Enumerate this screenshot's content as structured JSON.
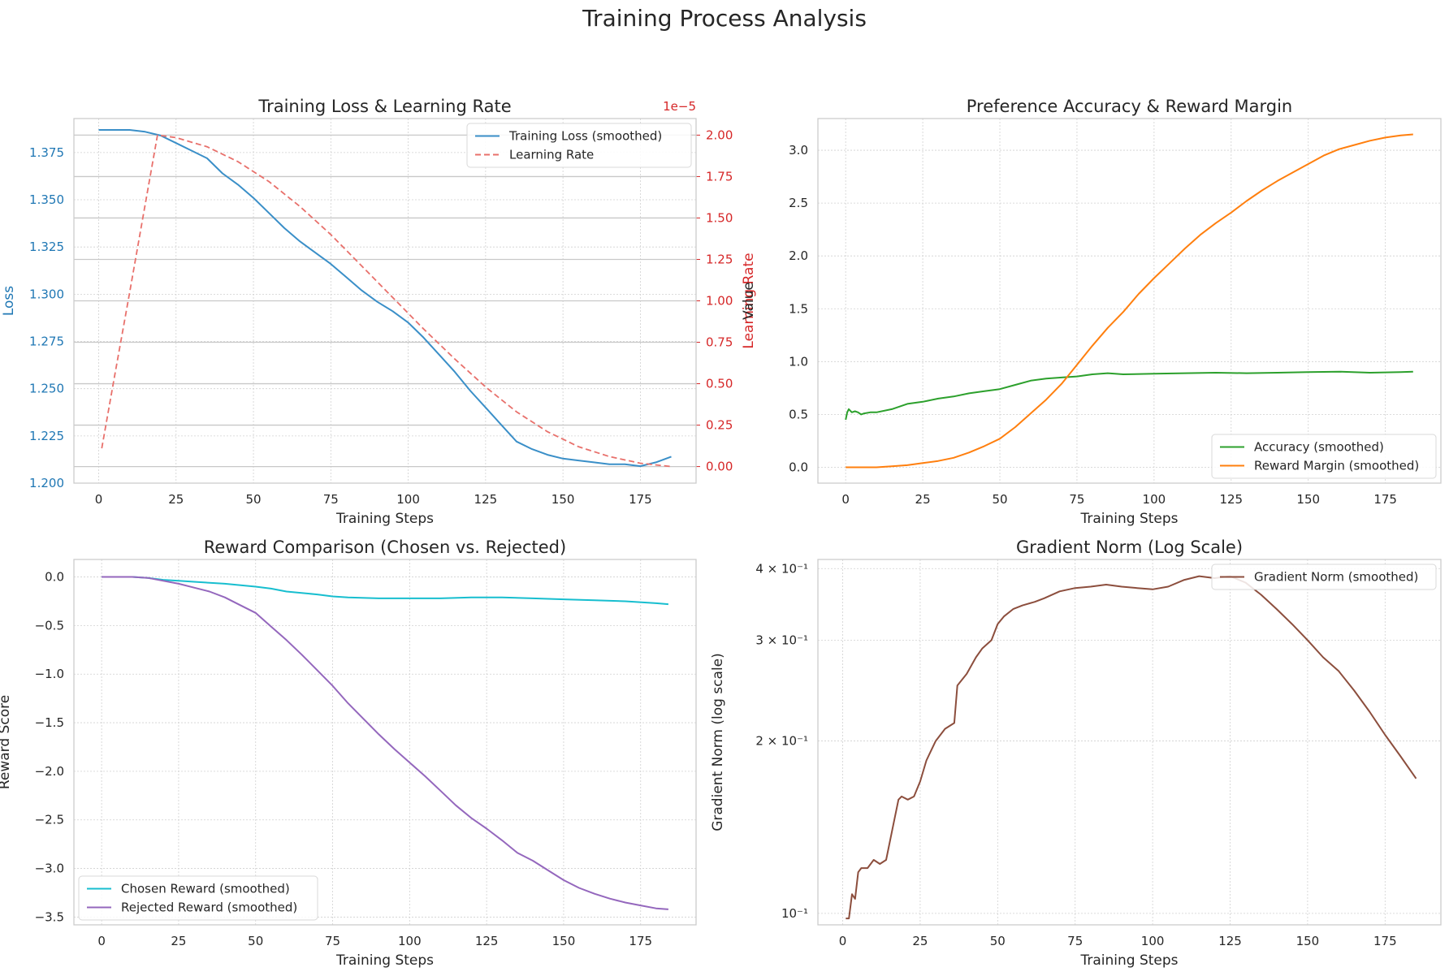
{
  "figure": {
    "title": "Training Process Analysis"
  },
  "colors": {
    "loss": "#3a8fc8",
    "lr": "#e8706b",
    "lr_axis": "#d62728",
    "loss_axis": "#1f77b4",
    "accuracy": "#2ca02c",
    "margin": "#ff7f0e",
    "chosen": "#17becf",
    "rejected": "#9467bd",
    "grad": "#8c4e3d",
    "grid": "#d0d0d0",
    "spine": "#cccccc",
    "text": "#262626"
  },
  "chart_data": [
    {
      "id": "loss",
      "type": "line",
      "title": "Training Loss & Learning Rate",
      "xlabel": "Training Steps",
      "ylabel": "Loss",
      "y2label": "Learning Rate",
      "y2_offset_label": "1e−5",
      "xlim": [
        -8,
        193
      ],
      "ylim": [
        1.2,
        1.393
      ],
      "y2lim": [
        -0.1,
        2.1
      ],
      "xticks": [
        0,
        25,
        50,
        75,
        100,
        125,
        150,
        175
      ],
      "yticks": [
        1.2,
        1.225,
        1.25,
        1.275,
        1.3,
        1.325,
        1.35,
        1.375
      ],
      "ytick_labels": [
        "1.200",
        "1.225",
        "1.250",
        "1.275",
        "1.300",
        "1.325",
        "1.350",
        "1.375"
      ],
      "y2ticks": [
        0,
        0.25,
        0.5,
        0.75,
        1.0,
        1.25,
        1.5,
        1.75,
        2.0
      ],
      "y2tick_labels": [
        "0.00",
        "0.25",
        "0.50",
        "0.75",
        "1.00",
        "1.25",
        "1.50",
        "1.75",
        "2.00"
      ],
      "legend_position": "upper right",
      "series": [
        {
          "name": "Training Loss (smoothed)",
          "axis": "left",
          "style": "solid",
          "x": [
            0,
            10,
            15,
            20,
            25,
            30,
            35,
            40,
            45,
            50,
            55,
            60,
            65,
            70,
            75,
            80,
            85,
            90,
            95,
            100,
            105,
            110,
            115,
            120,
            125,
            130,
            135,
            140,
            145,
            150,
            155,
            160,
            165,
            170,
            175,
            180,
            185
          ],
          "y": [
            1.387,
            1.387,
            1.386,
            1.384,
            1.38,
            1.376,
            1.372,
            1.364,
            1.358,
            1.351,
            1.343,
            1.335,
            1.328,
            1.322,
            1.316,
            1.309,
            1.302,
            1.296,
            1.291,
            1.285,
            1.277,
            1.268,
            1.259,
            1.249,
            1.24,
            1.231,
            1.222,
            1.218,
            1.215,
            1.213,
            1.212,
            1.211,
            1.21,
            1.21,
            1.209,
            1.211,
            1.214
          ]
        },
        {
          "name": "Learning Rate",
          "axis": "right",
          "style": "dashed",
          "x": [
            1,
            5,
            10,
            15,
            19,
            25,
            35,
            45,
            55,
            65,
            75,
            85,
            95,
            105,
            115,
            125,
            135,
            145,
            155,
            165,
            175,
            185
          ],
          "y": [
            0.11,
            0.53,
            1.05,
            1.58,
            2.0,
            1.985,
            1.93,
            1.84,
            1.72,
            1.57,
            1.4,
            1.21,
            1.02,
            0.83,
            0.65,
            0.48,
            0.33,
            0.21,
            0.12,
            0.06,
            0.02,
            0.0
          ]
        }
      ]
    },
    {
      "id": "pref",
      "type": "line",
      "title": "Preference Accuracy & Reward Margin",
      "xlabel": "Training Steps",
      "ylabel": "Value",
      "xlim": [
        -9,
        193
      ],
      "ylim": [
        -0.15,
        3.3
      ],
      "xticks": [
        0,
        25,
        50,
        75,
        100,
        125,
        150,
        175
      ],
      "yticks": [
        0,
        0.5,
        1.0,
        1.5,
        2.0,
        2.5,
        3.0
      ],
      "ytick_labels": [
        "0.0",
        "0.5",
        "1.0",
        "1.5",
        "2.0",
        "2.5",
        "3.0"
      ],
      "legend_position": "lower right",
      "series": [
        {
          "name": "Accuracy (smoothed)",
          "x": [
            0,
            0.5,
            1,
            2,
            3,
            4,
            5,
            6,
            8,
            10,
            15,
            20,
            25,
            30,
            35,
            40,
            45,
            50,
            55,
            60,
            65,
            70,
            75,
            80,
            85,
            90,
            100,
            110,
            120,
            130,
            140,
            150,
            160,
            170,
            180,
            184
          ],
          "y": [
            0.45,
            0.52,
            0.55,
            0.52,
            0.53,
            0.52,
            0.5,
            0.51,
            0.52,
            0.52,
            0.55,
            0.6,
            0.62,
            0.65,
            0.67,
            0.7,
            0.72,
            0.74,
            0.78,
            0.82,
            0.84,
            0.85,
            0.86,
            0.88,
            0.89,
            0.88,
            0.885,
            0.89,
            0.895,
            0.89,
            0.895,
            0.9,
            0.905,
            0.895,
            0.9,
            0.905
          ]
        },
        {
          "name": "Reward Margin (smoothed)",
          "x": [
            0,
            10,
            15,
            20,
            25,
            30,
            35,
            40,
            45,
            50,
            55,
            60,
            65,
            70,
            75,
            80,
            85,
            90,
            95,
            100,
            105,
            110,
            115,
            120,
            125,
            130,
            135,
            140,
            145,
            150,
            155,
            160,
            165,
            170,
            175,
            180,
            184
          ],
          "y": [
            0.0,
            0.0,
            0.01,
            0.02,
            0.04,
            0.06,
            0.09,
            0.14,
            0.2,
            0.27,
            0.38,
            0.51,
            0.64,
            0.79,
            0.97,
            1.15,
            1.32,
            1.47,
            1.64,
            1.79,
            1.93,
            2.07,
            2.2,
            2.31,
            2.41,
            2.52,
            2.62,
            2.71,
            2.79,
            2.87,
            2.95,
            3.01,
            3.05,
            3.09,
            3.12,
            3.14,
            3.15
          ]
        }
      ]
    },
    {
      "id": "reward",
      "type": "line",
      "title": "Reward Comparison (Chosen vs. Rejected)",
      "xlabel": "Training Steps",
      "ylabel": "Reward Score",
      "xlim": [
        -9,
        193
      ],
      "ylim": [
        -3.58,
        0.18
      ],
      "xticks": [
        0,
        25,
        50,
        75,
        100,
        125,
        150,
        175
      ],
      "yticks": [
        0.0,
        -0.5,
        -1.0,
        -1.5,
        -2.0,
        -2.5,
        -3.0,
        -3.5
      ],
      "ytick_labels": [
        "0.0",
        "−0.5",
        "−1.0",
        "−1.5",
        "−2.0",
        "−2.5",
        "−3.0",
        "−3.5"
      ],
      "legend_position": "lower left",
      "series": [
        {
          "name": "Chosen Reward (smoothed)",
          "x": [
            0,
            10,
            15,
            20,
            25,
            30,
            40,
            50,
            55,
            60,
            70,
            75,
            80,
            90,
            100,
            110,
            120,
            130,
            140,
            150,
            160,
            170,
            180,
            184
          ],
          "y": [
            0.0,
            0.0,
            -0.01,
            -0.03,
            -0.04,
            -0.05,
            -0.07,
            -0.1,
            -0.12,
            -0.15,
            -0.18,
            -0.2,
            -0.21,
            -0.22,
            -0.22,
            -0.22,
            -0.21,
            -0.21,
            -0.22,
            -0.23,
            -0.24,
            -0.25,
            -0.27,
            -0.28
          ]
        },
        {
          "name": "Rejected Reward (smoothed)",
          "x": [
            0,
            10,
            15,
            20,
            25,
            30,
            35,
            40,
            45,
            50,
            55,
            60,
            65,
            70,
            75,
            80,
            85,
            90,
            95,
            100,
            105,
            110,
            115,
            120,
            125,
            130,
            135,
            140,
            145,
            150,
            155,
            160,
            165,
            170,
            175,
            180,
            184
          ],
          "y": [
            0.0,
            0.0,
            -0.01,
            -0.04,
            -0.07,
            -0.11,
            -0.15,
            -0.21,
            -0.29,
            -0.37,
            -0.51,
            -0.65,
            -0.8,
            -0.96,
            -1.12,
            -1.3,
            -1.46,
            -1.62,
            -1.77,
            -1.91,
            -2.05,
            -2.2,
            -2.35,
            -2.48,
            -2.59,
            -2.71,
            -2.84,
            -2.92,
            -3.02,
            -3.12,
            -3.2,
            -3.26,
            -3.31,
            -3.35,
            -3.38,
            -3.41,
            -3.42
          ]
        }
      ]
    },
    {
      "id": "grad",
      "type": "line",
      "title": "Gradient Norm (Log Scale)",
      "xlabel": "Training Steps",
      "ylabel": "Gradient Norm (log scale)",
      "log_y": true,
      "xlim": [
        -8,
        193
      ],
      "ylim": [
        0.0955,
        0.415
      ],
      "xticks": [
        0,
        25,
        50,
        75,
        100,
        125,
        150,
        175
      ],
      "yticks": [
        0.1,
        0.2,
        0.3,
        0.4
      ],
      "ytick_labels": [
        "10⁻¹",
        "2 × 10⁻¹",
        "3 × 10⁻¹",
        "4 × 10⁻¹"
      ],
      "legend_position": "upper right",
      "series": [
        {
          "name": "Gradient Norm (smoothed)",
          "x": [
            1,
            2,
            3,
            4,
            5,
            6,
            8,
            10,
            12,
            14,
            16,
            18,
            19,
            21,
            23,
            25,
            27,
            30,
            33,
            36,
            37,
            40,
            43,
            45,
            48,
            50,
            52,
            55,
            58,
            62,
            65,
            70,
            75,
            80,
            85,
            90,
            95,
            100,
            105,
            110,
            115,
            120,
            125,
            130,
            135,
            140,
            145,
            150,
            155,
            160,
            165,
            170,
            175,
            180,
            185
          ],
          "y": [
            0.098,
            0.098,
            0.108,
            0.106,
            0.118,
            0.12,
            0.12,
            0.124,
            0.122,
            0.124,
            0.14,
            0.158,
            0.16,
            0.158,
            0.16,
            0.17,
            0.185,
            0.2,
            0.21,
            0.215,
            0.25,
            0.262,
            0.28,
            0.29,
            0.3,
            0.32,
            0.33,
            0.34,
            0.345,
            0.35,
            0.355,
            0.365,
            0.37,
            0.372,
            0.375,
            0.372,
            0.37,
            0.368,
            0.372,
            0.382,
            0.388,
            0.385,
            0.388,
            0.378,
            0.36,
            0.34,
            0.32,
            0.3,
            0.28,
            0.265,
            0.245,
            0.225,
            0.205,
            0.188,
            0.172
          ]
        }
      ]
    }
  ]
}
